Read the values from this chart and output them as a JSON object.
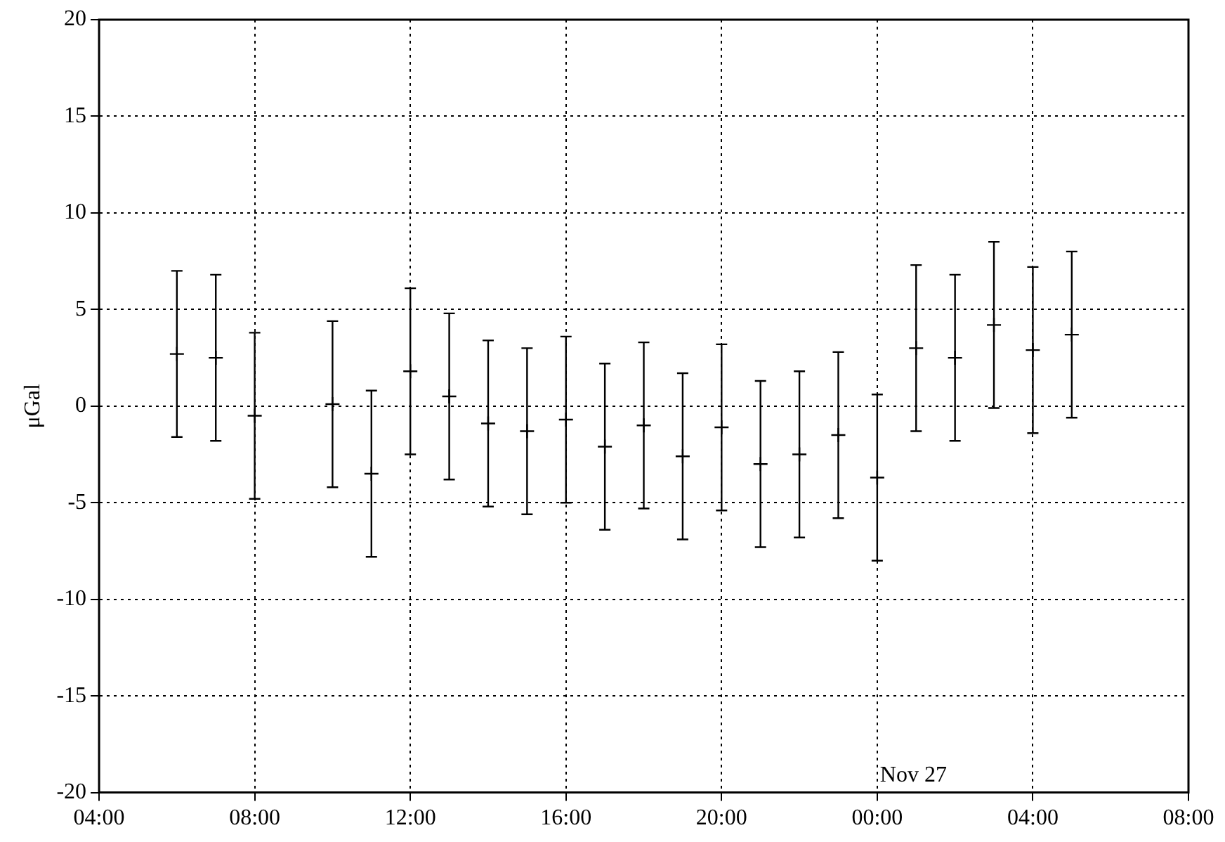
{
  "chart_data": {
    "type": "scatter",
    "ylabel": "μGal",
    "x": [
      "--11-26T06:00",
      "--11-26T07:00",
      "--11-26T08:00",
      "--11-26T10:00",
      "--11-26T11:00",
      "--11-26T12:00",
      "--11-26T13:00",
      "--11-26T14:00",
      "--11-26T15:00",
      "--11-26T16:00",
      "--11-26T17:00",
      "--11-26T18:00",
      "--11-26T19:00",
      "--11-26T20:00",
      "--11-26T21:00",
      "--11-26T22:00",
      "--11-26T23:00",
      "--11-27T00:00",
      "--11-27T01:00",
      "--11-27T02:00",
      "--11-27T03:00",
      "--11-27T04:00",
      "--11-27T05:00"
    ],
    "values": [
      2.7,
      2.5,
      -0.5,
      0.1,
      -3.5,
      1.8,
      0.5,
      -0.9,
      -1.3,
      -0.7,
      -2.1,
      -1.0,
      -2.6,
      -1.1,
      -3.0,
      -2.5,
      -1.5,
      -3.7,
      3.0,
      2.5,
      4.2,
      2.9,
      3.7
    ],
    "errors": [
      4.3,
      4.3,
      4.3,
      4.3,
      4.3,
      4.3,
      4.3,
      4.3,
      4.3,
      4.3,
      4.3,
      4.3,
      4.3,
      4.3,
      4.3,
      4.3,
      4.3,
      4.3,
      4.3,
      4.3,
      4.3,
      4.3,
      4.3
    ],
    "color": "#000000",
    "marker": "cross",
    "xlim": [
      "--11-26T04:00",
      "--11-27T08:00"
    ],
    "xticks": [
      {
        "value": "--11-26T04:00",
        "label": "04:00"
      },
      {
        "value": "--11-26T08:00",
        "label": "08:00"
      },
      {
        "value": "--11-26T12:00",
        "label": "12:00"
      },
      {
        "value": "--11-26T16:00",
        "label": "16:00"
      },
      {
        "value": "--11-26T20:00",
        "label": "20:00"
      },
      {
        "value": "--11-27T00:00",
        "label": "00:00"
      },
      {
        "value": "--11-27T04:00",
        "label": "04:00"
      },
      {
        "value": "--11-27T08:00",
        "label": "08:00"
      }
    ],
    "ylim": [
      -20,
      20
    ],
    "yticks": [
      -20,
      -15,
      -10,
      -5,
      0,
      5,
      10,
      15,
      20
    ],
    "grid": true,
    "legend": false,
    "annotations": [
      "Nov 27"
    ]
  }
}
